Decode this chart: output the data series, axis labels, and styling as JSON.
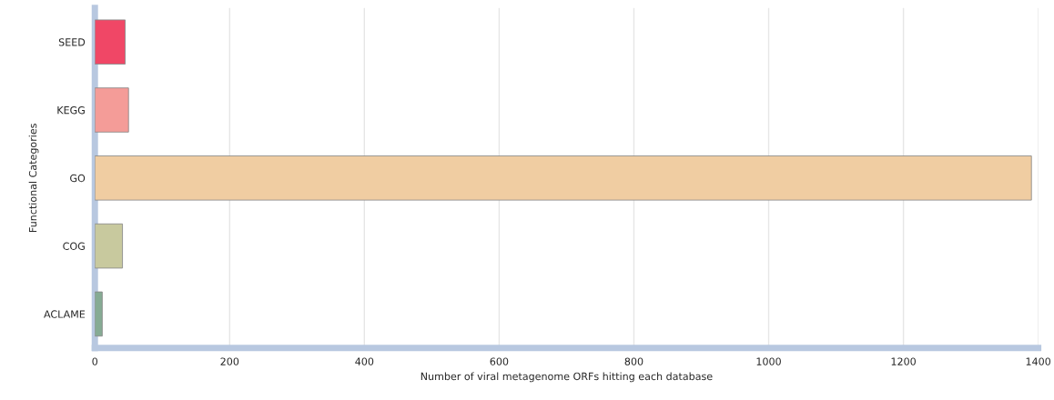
{
  "chart_data": {
    "type": "bar",
    "orientation": "horizontal",
    "categories": [
      "SEED",
      "KEGG",
      "GO",
      "COG",
      "ACLAME"
    ],
    "values": [
      45,
      50,
      1390,
      41,
      11
    ],
    "colors": [
      "#f04766",
      "#f49c98",
      "#f0cda2",
      "#c8c99e",
      "#86ab94"
    ],
    "xlabel": "Number of viral metagenome ORFs hitting each database",
    "ylabel": "Functional Categories",
    "xlim": [
      0,
      1400
    ],
    "xticks": [
      0,
      200,
      400,
      600,
      800,
      1000,
      1200,
      1400
    ],
    "grid": "x",
    "legend": false
  }
}
